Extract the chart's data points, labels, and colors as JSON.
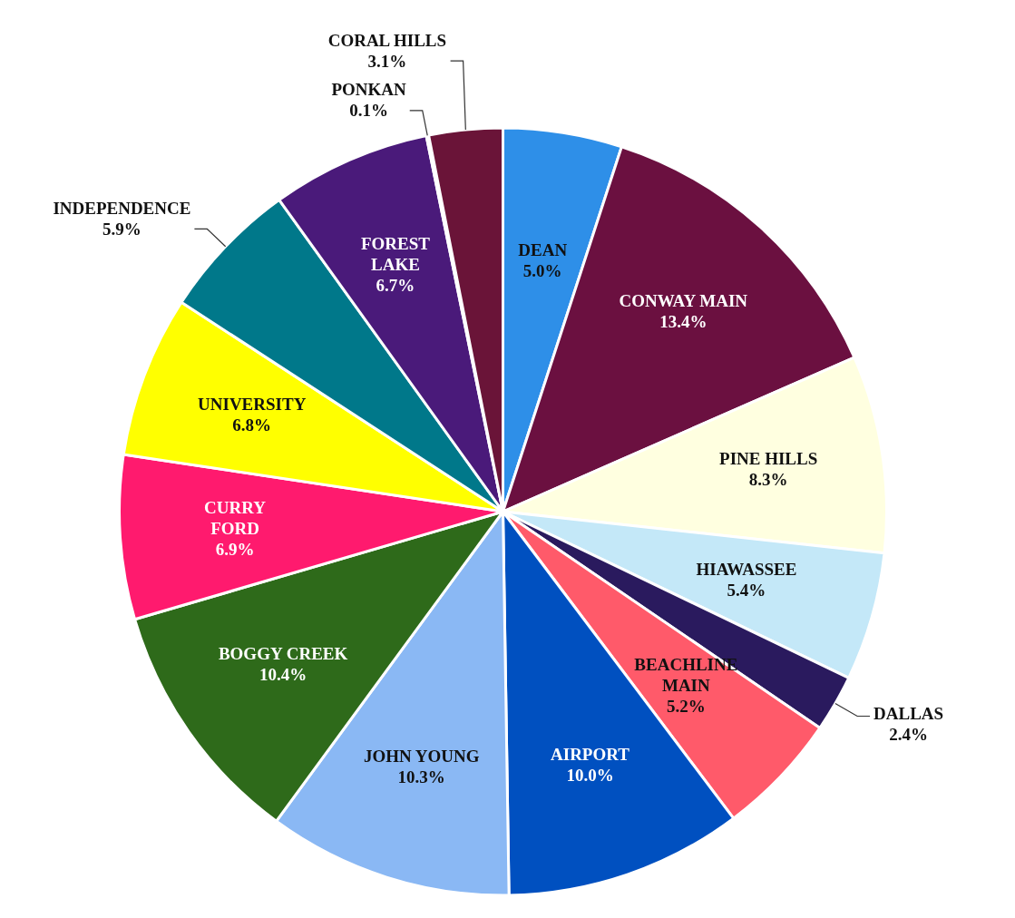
{
  "chart_data": {
    "type": "pie",
    "categories": [
      "DEAN",
      "CONWAY MAIN",
      "PINE HILLS",
      "HIAWASSEE",
      "DALLAS",
      "BEACHLINE MAIN",
      "AIRPORT",
      "JOHN YOUNG",
      "BOGGY CREEK",
      "CURRY FORD",
      "UNIVERSITY",
      "INDEPENDENCE",
      "FOREST LAKE",
      "PONKAN",
      "CORAL HILLS"
    ],
    "values": [
      5.0,
      13.4,
      8.3,
      5.4,
      2.4,
      5.2,
      10.0,
      10.3,
      10.4,
      6.9,
      6.8,
      5.9,
      6.7,
      0.1,
      3.1
    ],
    "value_labels": [
      "5.0%",
      "13.4%",
      "8.3%",
      "5.4%",
      "2.4%",
      "5.2%",
      "10.0%",
      "10.3%",
      "10.4%",
      "6.9%",
      "6.8%",
      "5.9%",
      "6.7%",
      "0.1%",
      "3.1%"
    ],
    "colors": [
      "#2e8fe8",
      "#6b1040",
      "#ffffe0",
      "#c4e8f8",
      "#2a1a5e",
      "#ff5a6a",
      "#0050c0",
      "#8ab8f4",
      "#2e6a1a",
      "#ff1a6e",
      "#ffff00",
      "#00788a",
      "#4a1a7a",
      "#3a0a2a",
      "#6a1438"
    ],
    "legend": false
  }
}
